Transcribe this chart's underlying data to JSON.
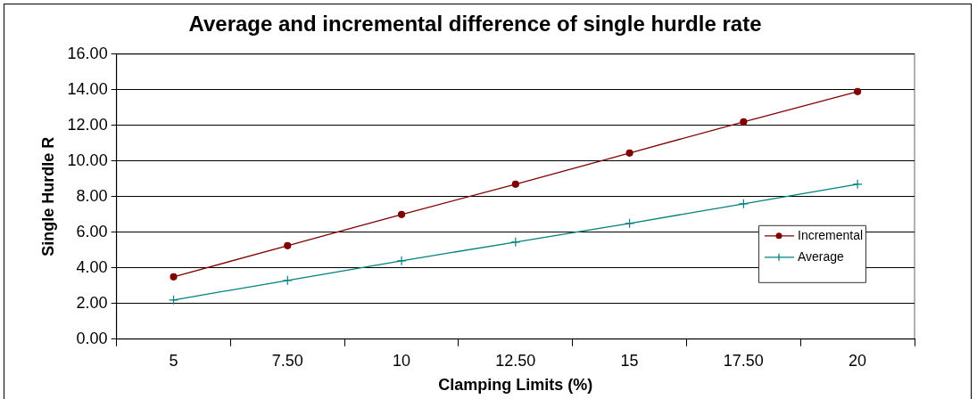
{
  "chart_data": {
    "type": "line",
    "title": "Average and incremental difference of single hurdle rate",
    "xlabel": "Clamping Limits (%)",
    "ylabel": "Single Hurdle R",
    "categories": [
      "5",
      "7.50",
      "10",
      "12.50",
      "15",
      "17.50",
      "20"
    ],
    "series": [
      {
        "name": "Incremental",
        "color": "#800000",
        "marker": "circle",
        "values": [
          3.5,
          5.25,
          7.0,
          8.7,
          10.45,
          12.2,
          13.9
        ]
      },
      {
        "name": "Average",
        "color": "#008080",
        "marker": "cross",
        "values": [
          2.2,
          3.3,
          4.4,
          5.45,
          6.5,
          7.6,
          8.7
        ]
      }
    ],
    "ylim": [
      0,
      16
    ],
    "yticks": [
      {
        "value": 0,
        "label": "0.00"
      },
      {
        "value": 2,
        "label": "2.00"
      },
      {
        "value": 4,
        "label": "4.00"
      },
      {
        "value": 6,
        "label": "6.00"
      },
      {
        "value": 8,
        "label": "8.00"
      },
      {
        "value": 10,
        "label": "10.00"
      },
      {
        "value": 12,
        "label": "12.00"
      },
      {
        "value": 14,
        "label": "14.00"
      },
      {
        "value": 16,
        "label": "16.00"
      }
    ],
    "grid": "y",
    "legend": "right"
  }
}
